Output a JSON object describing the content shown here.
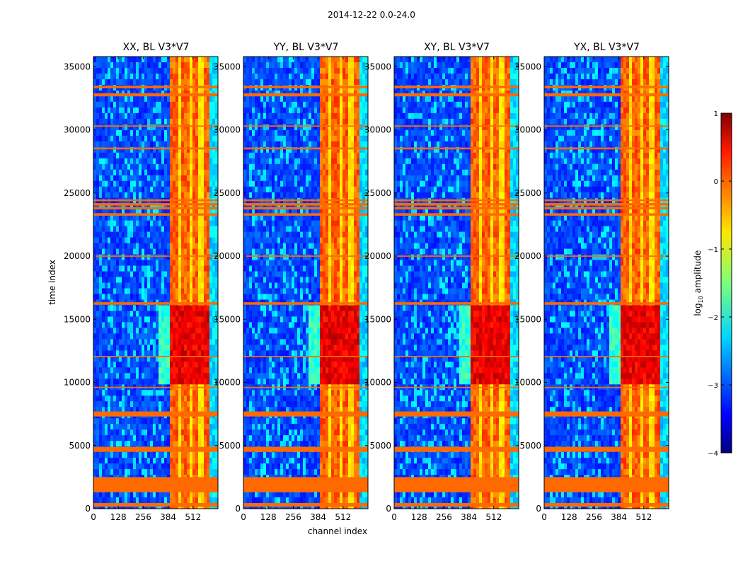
{
  "chart_data": {
    "type": "heatmap",
    "suptitle": "2014-12-22 0.0-24.0",
    "xlabel": "channel index",
    "ylabel": "time index",
    "colorbar_label": "log10 amplitude",
    "colorbar_label_base": "log",
    "colorbar_label_sub": "10",
    "colorbar_label_rest": " amplitude",
    "colorbar_range": [
      -4,
      1
    ],
    "colorbar_ticks": [
      1,
      0,
      -1,
      -2,
      -3,
      -4
    ],
    "colorbar_tick_labels": [
      "1",
      "0",
      "−1",
      "−2",
      "−3",
      "−4"
    ],
    "colormap": "jet",
    "x_range": [
      0,
      640
    ],
    "y_range": [
      0,
      35800
    ],
    "x_ticks": [
      0,
      128,
      256,
      384,
      512
    ],
    "y_ticks": [
      0,
      5000,
      10000,
      15000,
      20000,
      25000,
      30000,
      35000
    ],
    "panels": [
      {
        "title": "XX, BL V3*V7"
      },
      {
        "title": "YY, BL V3*V7"
      },
      {
        "title": "XY, BL V3*V7"
      },
      {
        "title": "YX, BL V3*V7"
      }
    ],
    "flagged_time_bands": [
      [
        150,
        450
      ],
      [
        1300,
        2500
      ],
      [
        4500,
        4900
      ],
      [
        7300,
        7700
      ],
      [
        9550,
        9650
      ],
      [
        12000,
        12100
      ],
      [
        16150,
        16350
      ],
      [
        19950,
        20050
      ],
      [
        23200,
        23400
      ],
      [
        23700,
        23900
      ],
      [
        24000,
        24200
      ],
      [
        24350,
        24500
      ],
      [
        28450,
        28600
      ],
      [
        30250,
        30350
      ],
      [
        32650,
        32900
      ],
      [
        33300,
        33500
      ]
    ],
    "strong_channel_range": [
      400,
      600
    ],
    "strong_time_range": [
      10000,
      16000
    ]
  }
}
